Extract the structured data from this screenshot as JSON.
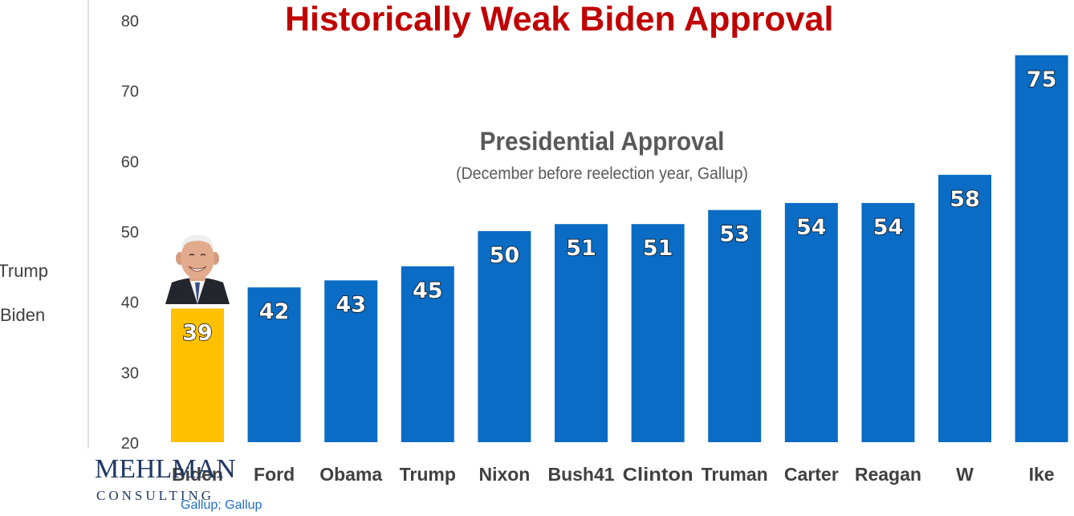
{
  "chart_data": {
    "type": "bar",
    "title": "Historically Weak Biden Approval",
    "subtitle": "Presidential Approval",
    "note": "(December before reelection year, Gallup)",
    "categories": [
      "Biden",
      "Ford",
      "Obama",
      "Trump",
      "Nixon",
      "Bush41",
      "Clinton",
      "Truman",
      "Carter",
      "Reagan",
      "W",
      "Ike"
    ],
    "values": [
      39,
      42,
      43,
      45,
      50,
      51,
      51,
      53,
      54,
      54,
      58,
      75
    ],
    "highlight_index": 0,
    "ylim": [
      20,
      80
    ],
    "yticks": [
      20,
      30,
      40,
      50,
      60,
      70,
      80
    ],
    "grid": false,
    "colors": {
      "bar": "#0A6CC4",
      "highlight_bar": "#FFC000",
      "data_label": "#FFFFFF",
      "tick_label": "#404040",
      "title": "#C00000",
      "subtitle": "#595959"
    }
  },
  "side_text": {
    "line1": "Trump",
    "line2": "Biden"
  },
  "logo": {
    "top": "MEHLMAN",
    "bottom": "CONSULTING"
  },
  "source": {
    "link1": "Gallup",
    "separator": "; ",
    "link2": "Gallup"
  },
  "photo": {
    "icon": "biden-portrait-icon"
  }
}
